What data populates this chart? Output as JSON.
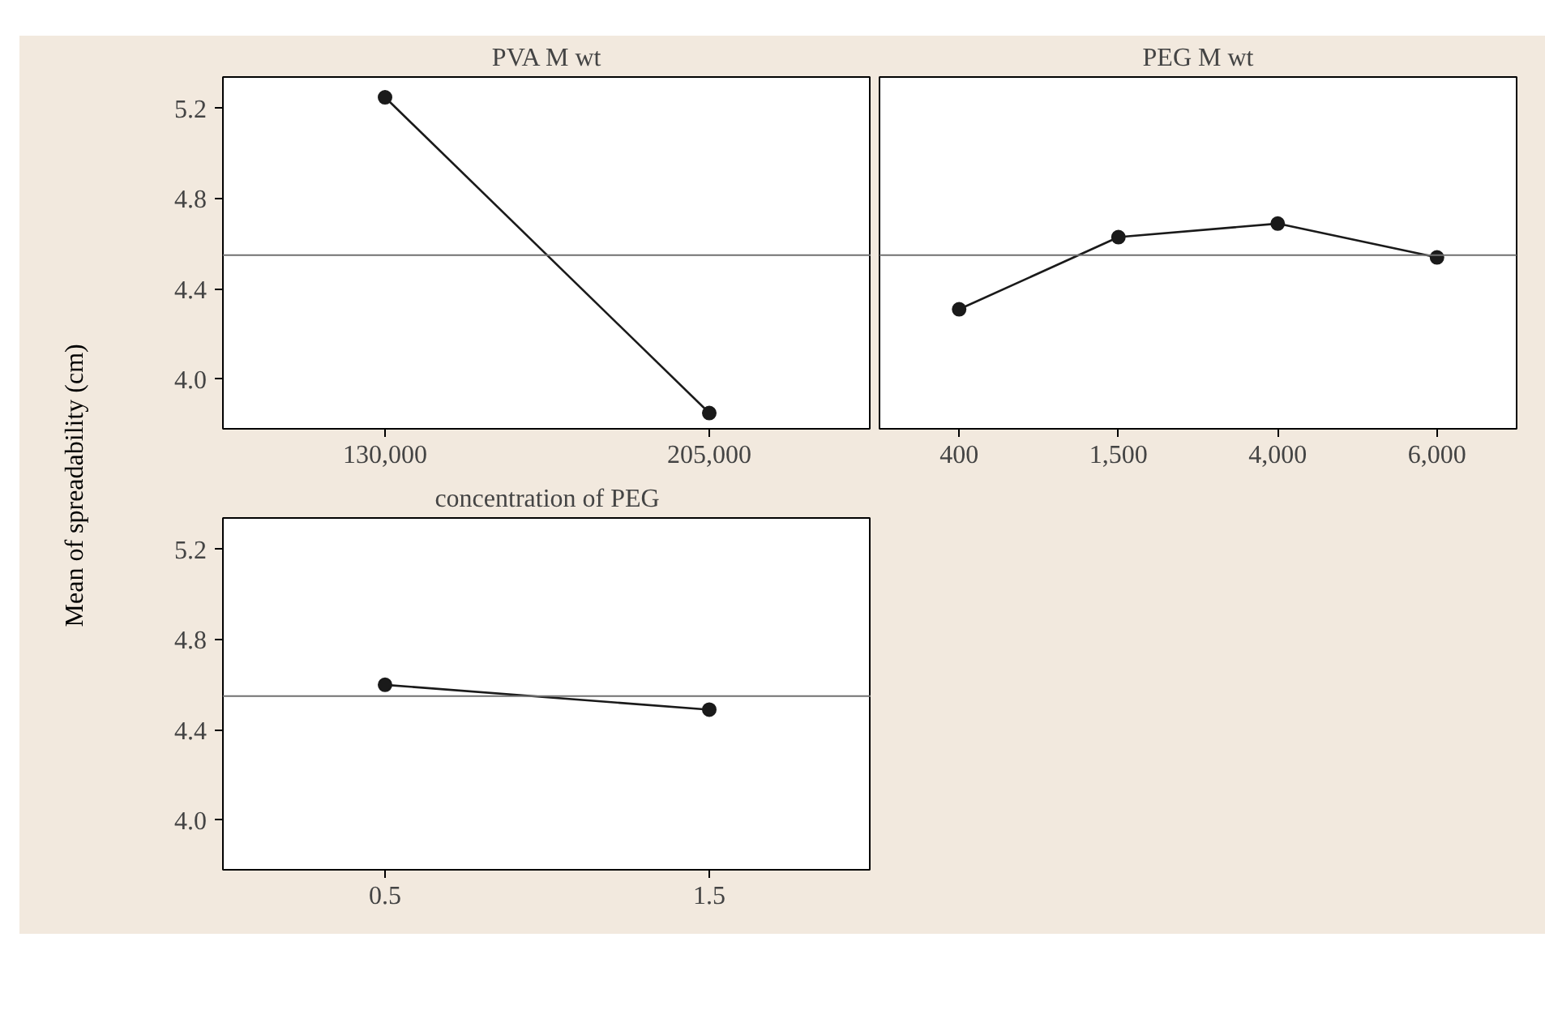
{
  "chart_data": [
    {
      "type": "line",
      "title": "PVA M wt",
      "ylabel": "Mean of spreadability (cm)",
      "categories": [
        "130,000",
        "205,000"
      ],
      "values": [
        5.25,
        3.85
      ],
      "color": "#1a1a1a",
      "marker": "circle",
      "ylim": [
        3.78,
        5.34
      ],
      "yticks": [
        {
          "value": 4.0,
          "label": "4.0"
        },
        4.4,
        4.8,
        5.2
      ],
      "ref_lines": [
        {
          "axis": "y",
          "value": 4.55,
          "color": "#707070"
        }
      ]
    },
    {
      "type": "line",
      "title": "PEG M wt",
      "categories": [
        "400",
        "1,500",
        "4,000",
        "6,000"
      ],
      "values": [
        4.31,
        4.63,
        4.69,
        4.54
      ],
      "color": "#1a1a1a",
      "marker": "circle",
      "ylim": [
        3.78,
        5.34
      ],
      "yticks": [
        4.0,
        4.4,
        4.8,
        5.2
      ],
      "tick_labels": "x",
      "ref_lines": [
        {
          "axis": "y",
          "value": 4.55,
          "color": "#707070"
        }
      ]
    },
    {
      "type": "line",
      "title": "concentration of PEG",
      "categories": [
        "0.5",
        "1.5"
      ],
      "values": [
        4.6,
        4.49
      ],
      "color": "#1a1a1a",
      "marker": "circle",
      "ylim": [
        3.78,
        5.34
      ],
      "yticks": [
        {
          "value": 4.0,
          "label": "4.0"
        },
        4.4,
        4.8,
        5.2
      ],
      "ref_lines": [
        {
          "axis": "y",
          "value": 4.55,
          "color": "#707070"
        }
      ]
    }
  ]
}
